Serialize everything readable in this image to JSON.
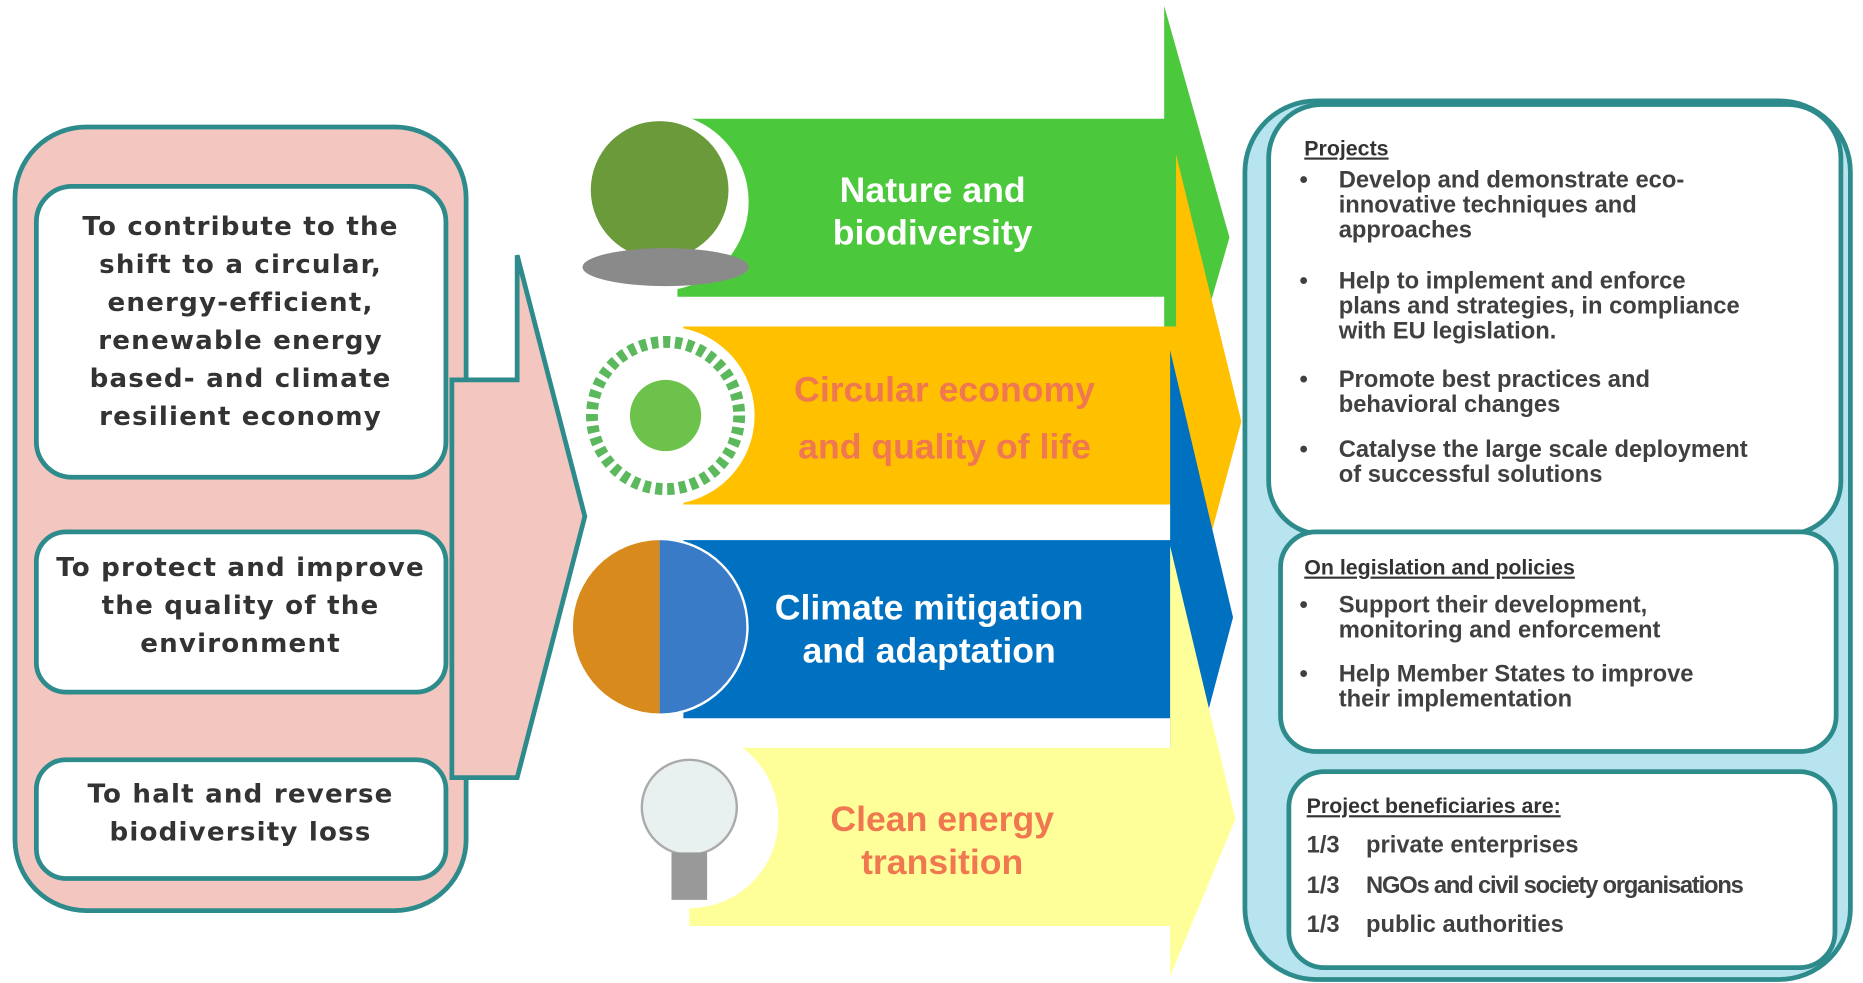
{
  "objectives": [
    {
      "lines": [
        "To contribute to the",
        "shift to a circular,",
        "energy-efficient,",
        "renewable energy",
        "based- and climate",
        "resilient economy"
      ]
    },
    {
      "lines": [
        "To protect and improve",
        "the quality of the",
        "environment"
      ]
    },
    {
      "lines": [
        "To halt and reverse",
        "biodiversity loss"
      ]
    }
  ],
  "themes": [
    {
      "lines": [
        "Nature and",
        "biodiversity"
      ]
    },
    {
      "lines": [
        "Circular economy",
        "and quality of life"
      ]
    },
    {
      "lines": [
        "Climate  mitigation",
        "and adaptation"
      ]
    },
    {
      "lines": [
        "Clean energy",
        "transition"
      ]
    }
  ],
  "panel": {
    "projects": {
      "heading": "Projects",
      "bullets": [
        {
          "lines": [
            "Develop and demonstrate eco-",
            "innovative techniques and",
            "approaches"
          ]
        },
        {
          "lines": [
            "Help to implement and enforce",
            "plans and strategies, in compliance",
            "with EU legislation."
          ]
        },
        {
          "lines": [
            "Promote best practices and",
            "behavioral changes"
          ]
        },
        {
          "lines": [
            "Catalyse the large scale deployment",
            "of successful solutions"
          ]
        }
      ]
    },
    "legislation": {
      "heading": "On legislation and policies",
      "bullets": [
        {
          "lines": [
            "Support their development,",
            "monitoring and enforcement"
          ]
        },
        {
          "lines": [
            "Help Member States to improve",
            "their implementation"
          ]
        }
      ]
    },
    "beneficiaries": {
      "heading": "Project beneficiaries are:",
      "rows": [
        {
          "share": "1/3",
          "text": "private enterprises"
        },
        {
          "share": "1/3",
          "text": "NGOs and civil society organisations"
        },
        {
          "share": "1/3",
          "text": "public authorities"
        }
      ]
    }
  }
}
